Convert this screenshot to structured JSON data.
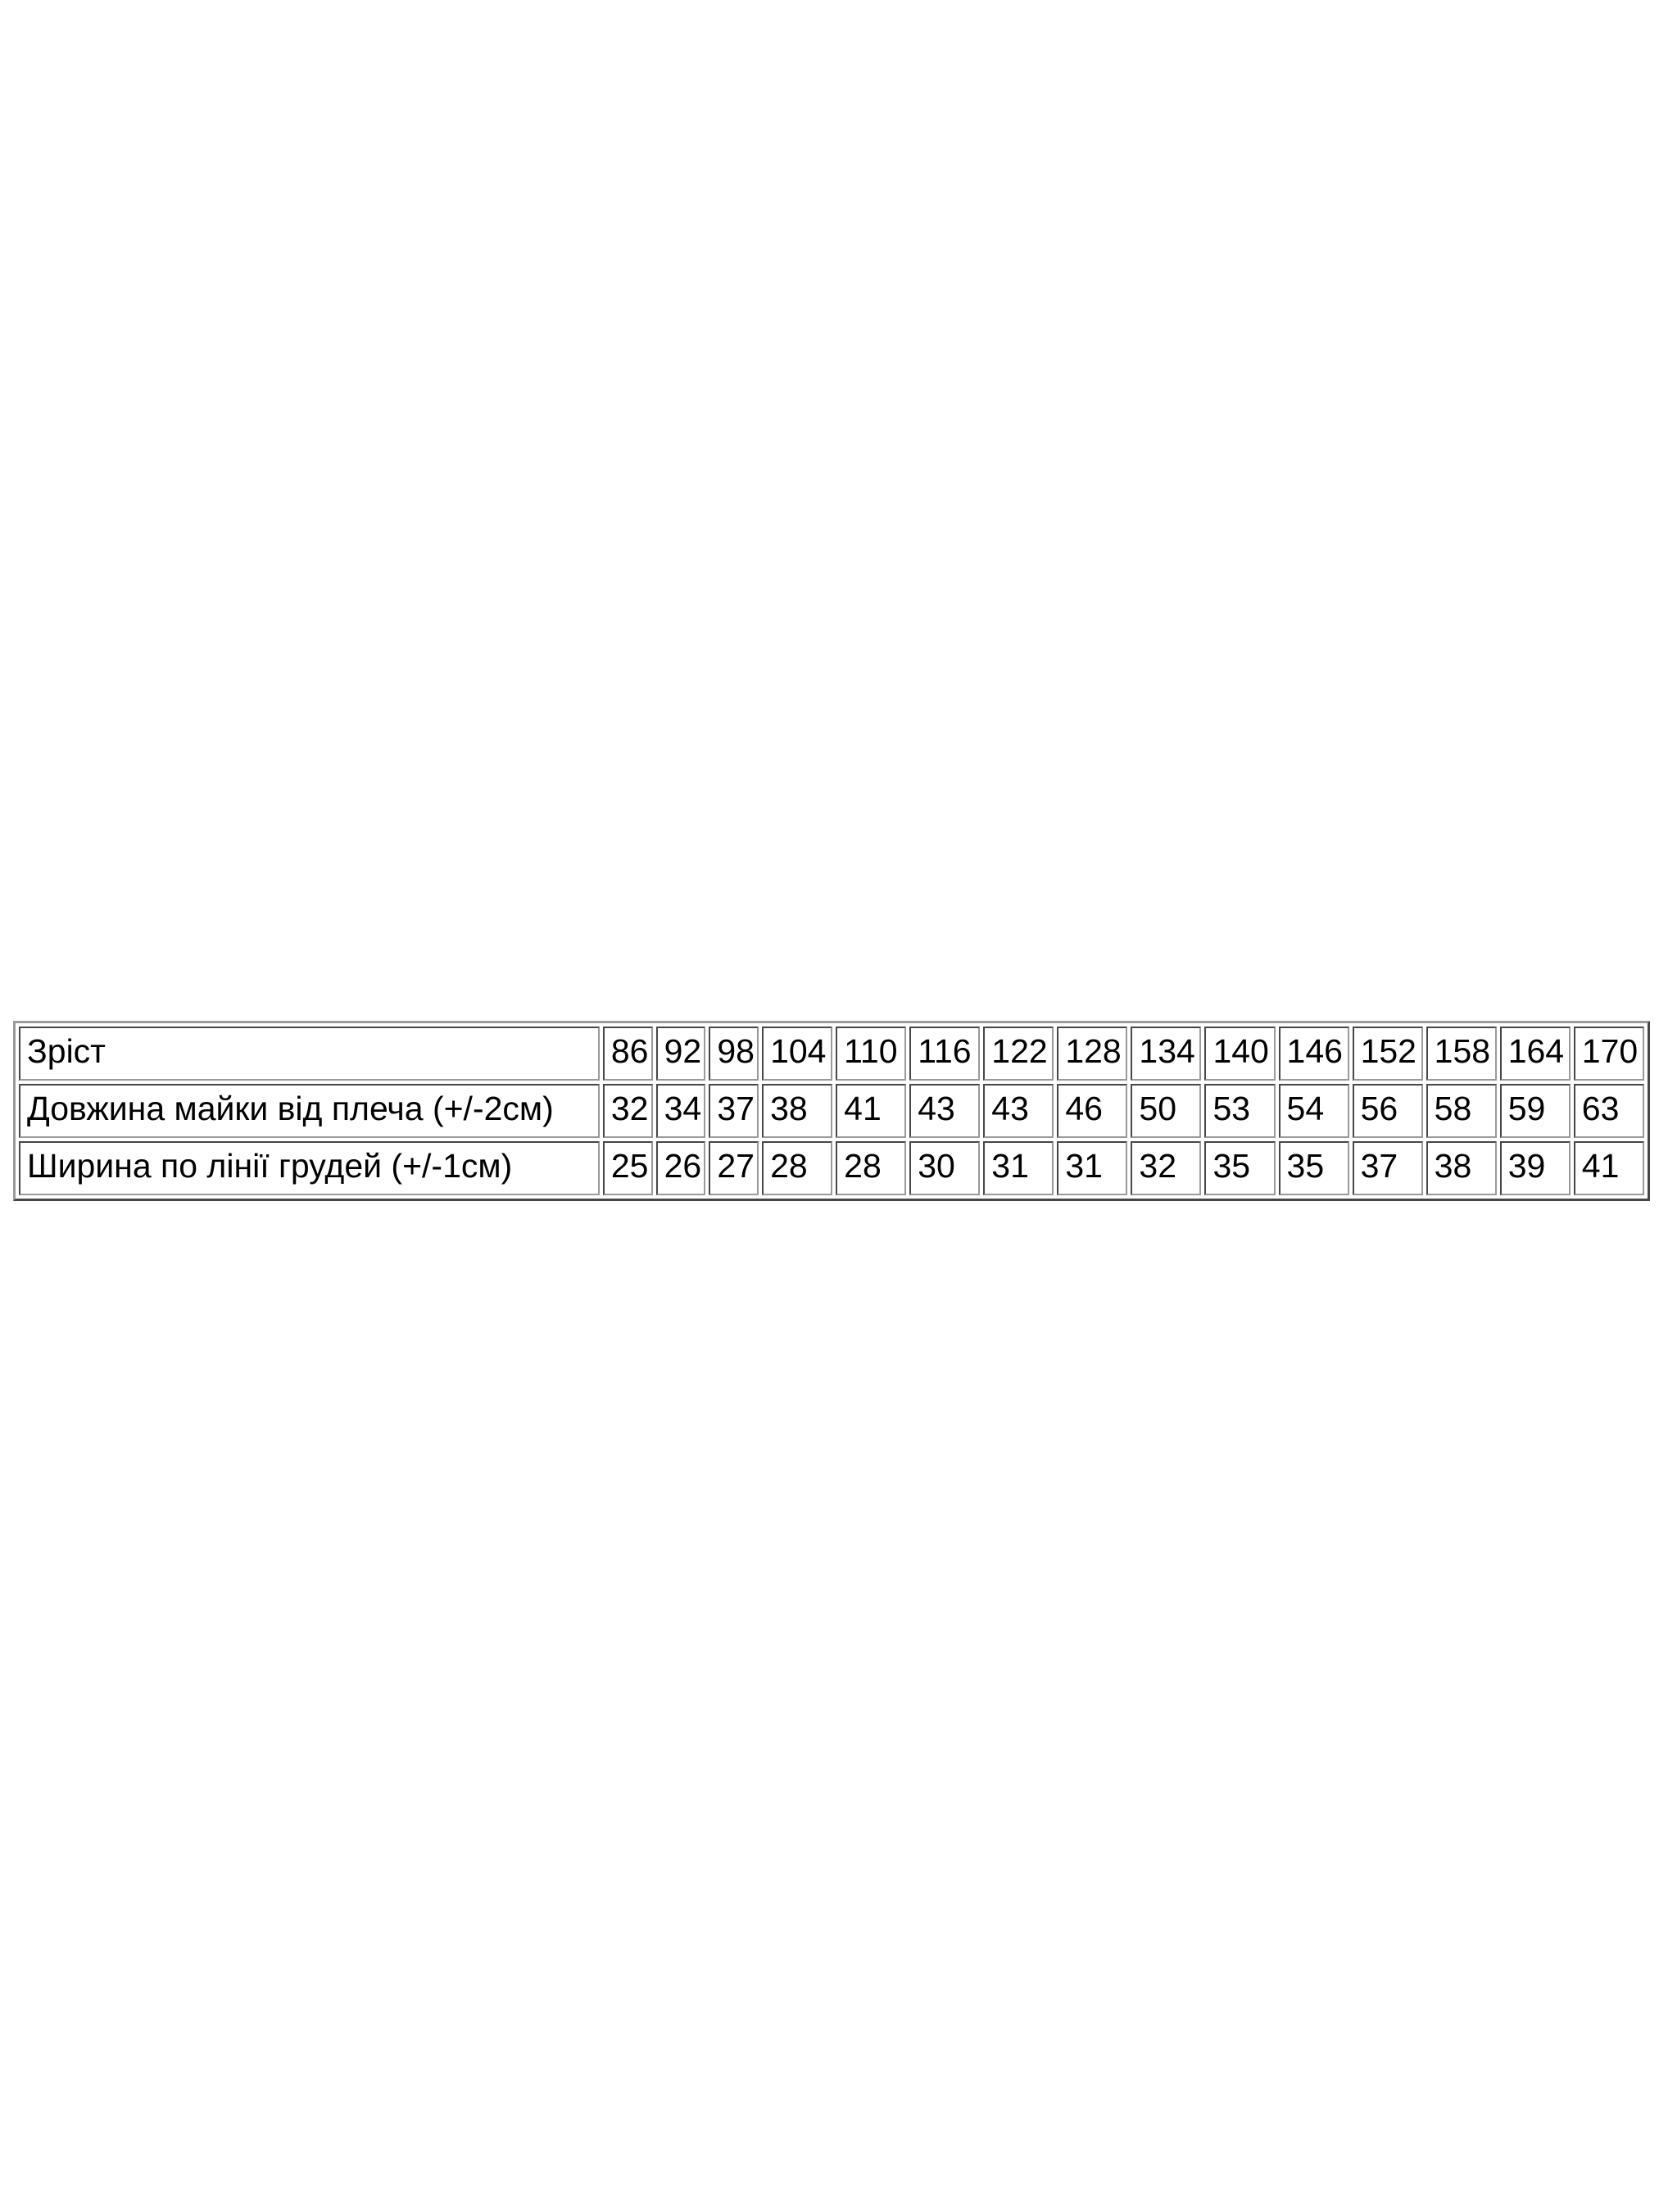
{
  "page": {
    "background_color": "#ffffff",
    "text_color": "#000000",
    "table_border_color": "#9a9a9a"
  },
  "chart_data": {
    "type": "table",
    "title": "",
    "description_labels": {
      "row1": "Зріст",
      "row2": "Довжина майки від плеча (+/-2см)",
      "row3": "Ширина по лінії грудей (+/-1см)"
    },
    "rows": [
      {
        "label": "Зріст",
        "values": [
          86,
          92,
          98,
          104,
          110,
          116,
          122,
          128,
          134,
          140,
          146,
          152,
          158,
          164,
          170
        ]
      },
      {
        "label": "Довжина майки від плеча (+/-2см)",
        "values": [
          32,
          34,
          37,
          38,
          41,
          43,
          43,
          46,
          50,
          53,
          54,
          56,
          58,
          59,
          63
        ]
      },
      {
        "label": "Ширина по лінії грудей (+/-1см)",
        "values": [
          25,
          26,
          27,
          28,
          28,
          30,
          31,
          31,
          32,
          35,
          35,
          37,
          38,
          39,
          41
        ]
      }
    ]
  }
}
